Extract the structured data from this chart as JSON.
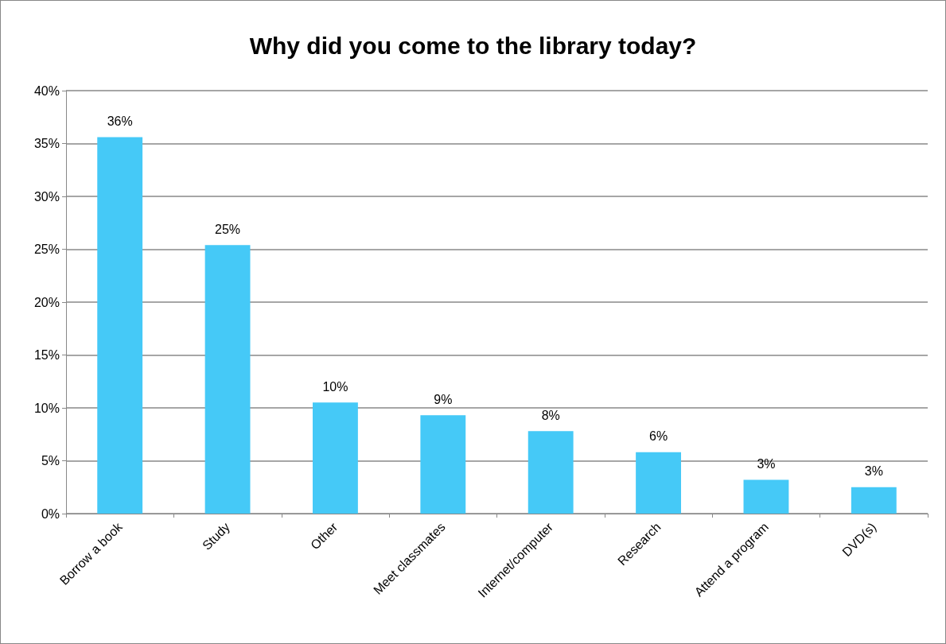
{
  "chart_data": {
    "type": "bar",
    "title": "Why did you come to the library today?",
    "categories": [
      "Borrow a book",
      "Study",
      "Other",
      "Meet classmates",
      "Internet/computer",
      "Research",
      "Attend a program",
      "DVD(s)"
    ],
    "values": [
      35.6,
      25.4,
      10.5,
      9.3,
      7.8,
      5.8,
      3.2,
      2.5
    ],
    "value_labels": [
      "36%",
      "25%",
      "10%",
      "9%",
      "8%",
      "6%",
      "3%",
      "3%"
    ],
    "color": "#45c9f7",
    "ylim": [
      0,
      40
    ],
    "yticks": [
      {
        "value": 0,
        "label": "0%"
      },
      {
        "value": 5,
        "label": "5%"
      },
      {
        "value": 10,
        "label": "10%"
      },
      {
        "value": 15,
        "label": "15%"
      },
      {
        "value": 20,
        "label": "20%"
      },
      {
        "value": 25,
        "label": "25%"
      },
      {
        "value": 30,
        "label": "30%"
      },
      {
        "value": 35,
        "label": "35%"
      },
      {
        "value": 40,
        "label": "40%"
      }
    ],
    "grid": "y"
  }
}
